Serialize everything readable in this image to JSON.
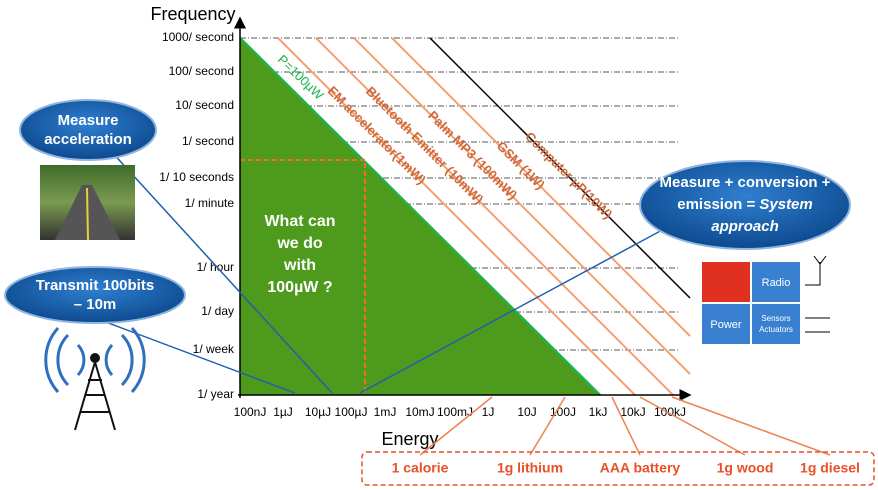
{
  "frequency_title": "Frequency",
  "energy_title": "Energy",
  "y_axis_labels": [
    "1000/ second",
    "100/ second",
    "10/ second",
    "1/ second",
    "1/ 10 seconds",
    "1/ minute",
    "1/ hour",
    "1/ day",
    "1/ week",
    "1/ year"
  ],
  "x_axis_labels": [
    "100nJ",
    "1µJ",
    "10µJ",
    "100µJ",
    "1mJ",
    "10mJ",
    "100mJ",
    "1J",
    "10J",
    "100J",
    "1kJ",
    "10kJ",
    "100kJ"
  ],
  "green_line_label": "P=100µW",
  "question": [
    "What can",
    "we do",
    "with",
    "100µW ?"
  ],
  "power_lines": [
    "EM accelerator(1mW)",
    "Bluetooth Emitter (10mW)",
    "Palm MP3 (100mW)",
    "GSM (1W)",
    "Computer µP(10W)"
  ],
  "callouts": {
    "acceleration": [
      "Measure",
      "acceleration"
    ],
    "transmit": [
      "Transmit 100bits",
      "– 10m"
    ],
    "system": {
      "line1": "Measure + conversion +",
      "line2": "emission =",
      "line2_italic": "System",
      "line3": "approach"
    }
  },
  "blocks": [
    "Radio",
    "Power",
    "Sensors",
    "Actuators"
  ],
  "energy_examples": [
    "1 calorie",
    "1g lithium",
    "AAA battery",
    "1g wood",
    "1g diesel"
  ]
}
